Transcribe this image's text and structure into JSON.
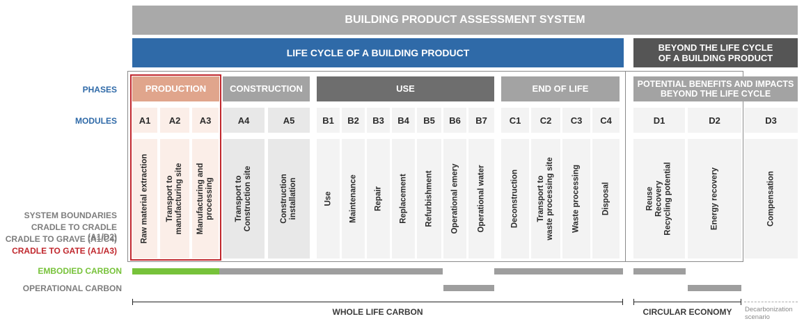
{
  "title": "BUILDING PRODUCT ASSESSMENT SYSTEM",
  "life_cycle": "LIFE CYCLE OF A BUILDING PRODUCT",
  "beyond": "BEYOND THE LIFE CYCLE\nOF A BUILDING PRODUCT",
  "row_labels": {
    "phases": "PHASES",
    "modules": "MODULES",
    "system_boundaries": "SYSTEM BOUNDARIES",
    "cradle_to_cradle": "CRADLE TO CRADLE (A1/D2)",
    "cradle_to_grave": "CRADLE TO GRAVE (A1/C4)",
    "cradle_to_gate": "CRADLE TO GATE (A1/A3)",
    "embodied_carbon": "EMBODIED CARBON",
    "operational_carbon": "OPERATIONAL CARBON"
  },
  "phases": [
    {
      "label": "PRODUCTION",
      "color": "#e0a58c"
    },
    {
      "label": "CONSTRUCTION",
      "color": "#a3a3a3"
    },
    {
      "label": "USE",
      "color": "#6e6e6e"
    },
    {
      "label": "END OF LIFE",
      "color": "#a3a3a3"
    },
    {
      "label": "POTENTIAL BENEFITS AND IMPACTS\nBEYOND THE LIFE CYCLE",
      "color": "#a3a3a3"
    }
  ],
  "modules": [
    {
      "code": "A1",
      "desc": "Raw material extraction"
    },
    {
      "code": "A2",
      "desc": "Transport to\nmanufacturing site"
    },
    {
      "code": "A3",
      "desc": "Manufacturing and\nprocessing"
    },
    {
      "code": "A4",
      "desc": "Transport to\nConstruction site"
    },
    {
      "code": "A5",
      "desc": "Construction\ninstallation"
    },
    {
      "code": "B1",
      "desc": "Use"
    },
    {
      "code": "B2",
      "desc": "Maintenance"
    },
    {
      "code": "B3",
      "desc": "Repair"
    },
    {
      "code": "B4",
      "desc": "Replacement"
    },
    {
      "code": "B5",
      "desc": "Refurbishment"
    },
    {
      "code": "B6",
      "desc": "Operational emery"
    },
    {
      "code": "B7",
      "desc": "Operational water"
    },
    {
      "code": "C1",
      "desc": "Deconstruction"
    },
    {
      "code": "C2",
      "desc": "Transport to\nwaste processing site"
    },
    {
      "code": "C3",
      "desc": "Waste processing"
    },
    {
      "code": "C4",
      "desc": "Disposal"
    },
    {
      "code": "D1",
      "desc": "Reuse\nRecovery\nRecycling potential"
    },
    {
      "code": "D2",
      "desc": "Energy recovery"
    },
    {
      "code": "D3",
      "desc": "Compensation"
    }
  ],
  "bottom": {
    "whole_life_carbon": "WHOLE LIFE CARBON",
    "circular_economy": "CIRCULAR ECONOMY",
    "decarbonization": "Decarbonization\nscenario"
  },
  "colors": {
    "title_band": "#a9a9a9",
    "life_cycle_band": "#2f6aa8",
    "beyond_band": "#555555",
    "label_blue": "#2f6aa8",
    "label_gray": "#7d7d7d",
    "label_red": "#c0272d",
    "label_green": "#77c23a",
    "embodied_green": "#77c23a",
    "bar_gray": "#9e9e9e",
    "production_cell": "#fbeee8",
    "cell_gray": "#e8e8e8",
    "cell_light": "#f3f3f3",
    "production_border": "#c0272d"
  }
}
